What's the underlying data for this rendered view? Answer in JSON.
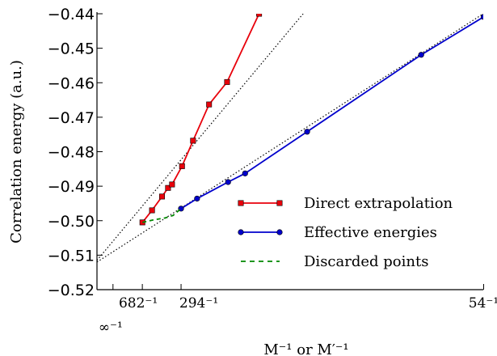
{
  "chart_data": {
    "type": "line",
    "title": "",
    "xlabel": "M⁻¹ or M′⁻¹",
    "ylabel": "Correlation energy (a.u.)",
    "xlim": [
      -0.0008,
      0.0185
    ],
    "ylim": [
      -0.52,
      -0.44
    ],
    "yticks": [
      -0.52,
      -0.51,
      -0.5,
      -0.49,
      -0.48,
      -0.47,
      -0.46,
      -0.45,
      -0.44
    ],
    "ytick_labels": [
      "−0.52",
      "−0.51",
      "−0.50",
      "−0.49",
      "−0.48",
      "−0.47",
      "−0.46",
      "−0.45",
      "−0.44"
    ],
    "xticks": [
      {
        "value": 0,
        "label": "∞⁻¹"
      },
      {
        "value": 0.001466,
        "label": "682⁻¹"
      },
      {
        "value": 0.003401,
        "label": "294⁻¹"
      },
      {
        "value": 0.018519,
        "label": "54⁻¹"
      }
    ],
    "legend_position": "lower-right",
    "series": [
      {
        "name": "Direct extrapolation",
        "color": "#e8000b",
        "marker": "square",
        "x": [
          0.00147,
          0.00195,
          0.00245,
          0.00275,
          0.00295,
          0.00345,
          0.004,
          0.0048,
          0.0057,
          0.0073
        ],
        "y": [
          -0.5005,
          -0.497,
          -0.493,
          -0.4905,
          -0.4895,
          -0.4842,
          -0.4768,
          -0.4663,
          -0.4598,
          -0.44
        ]
      },
      {
        "name": "Effective energies",
        "color": "#0000cc",
        "marker": "circle",
        "x": [
          0.0034,
          0.0042,
          0.00575,
          0.0066,
          0.0097,
          0.0154,
          0.01852
        ],
        "y": [
          -0.4965,
          -0.4936,
          -0.4888,
          -0.4863,
          -0.4742,
          -0.4519,
          -0.4409
        ]
      },
      {
        "name": "Discarded points",
        "color": "#008800",
        "marker": "none",
        "line": "dashed",
        "x": [
          0.00147,
          0.002,
          0.0026,
          0.003,
          0.0034
        ],
        "y": [
          -0.5005,
          -0.4998,
          -0.4992,
          -0.4985,
          -0.4965
        ]
      }
    ],
    "fit_lines": [
      {
        "x": [
          -0.0008,
          0.0095
        ],
        "y": [
          -0.5115,
          -0.44
        ]
      },
      {
        "x": [
          -0.0008,
          0.0185
        ],
        "y": [
          -0.512,
          -0.44
        ]
      }
    ]
  }
}
